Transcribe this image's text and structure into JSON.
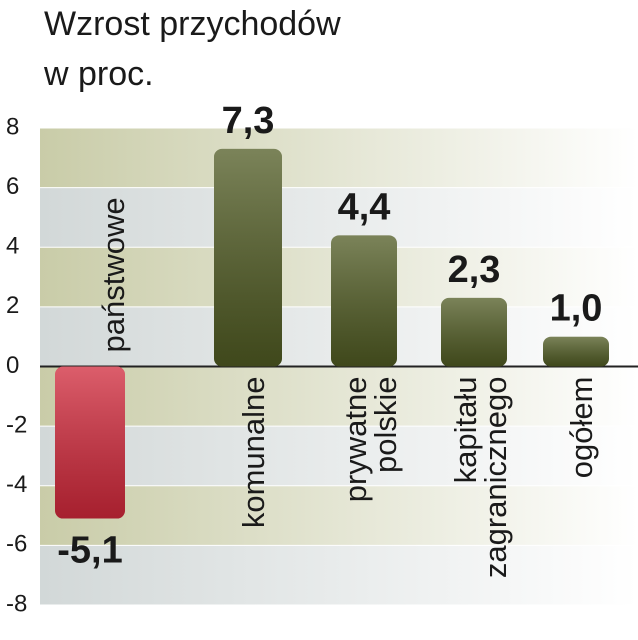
{
  "chart_data": {
    "type": "bar",
    "title": "Wzrost przychodów",
    "subtitle": "w proc.",
    "categories": [
      "państwowe",
      "komunalne",
      "prywatne polskie",
      "kapitału zagranicznego",
      "ogółem"
    ],
    "values": [
      -5.1,
      7.3,
      4.4,
      2.3,
      1.0
    ],
    "value_labels": [
      "-5,1",
      "7,3",
      "4,4",
      "2,3",
      "1,0"
    ],
    "colors": [
      "#d0283a",
      "#4f5a22",
      "#4f5a22",
      "#4f5a22",
      "#4f5a22"
    ],
    "ylim": [
      -8,
      8
    ],
    "yticks": [
      -8,
      -6,
      -4,
      -2,
      0,
      2,
      4,
      6,
      8
    ],
    "grid": true
  }
}
